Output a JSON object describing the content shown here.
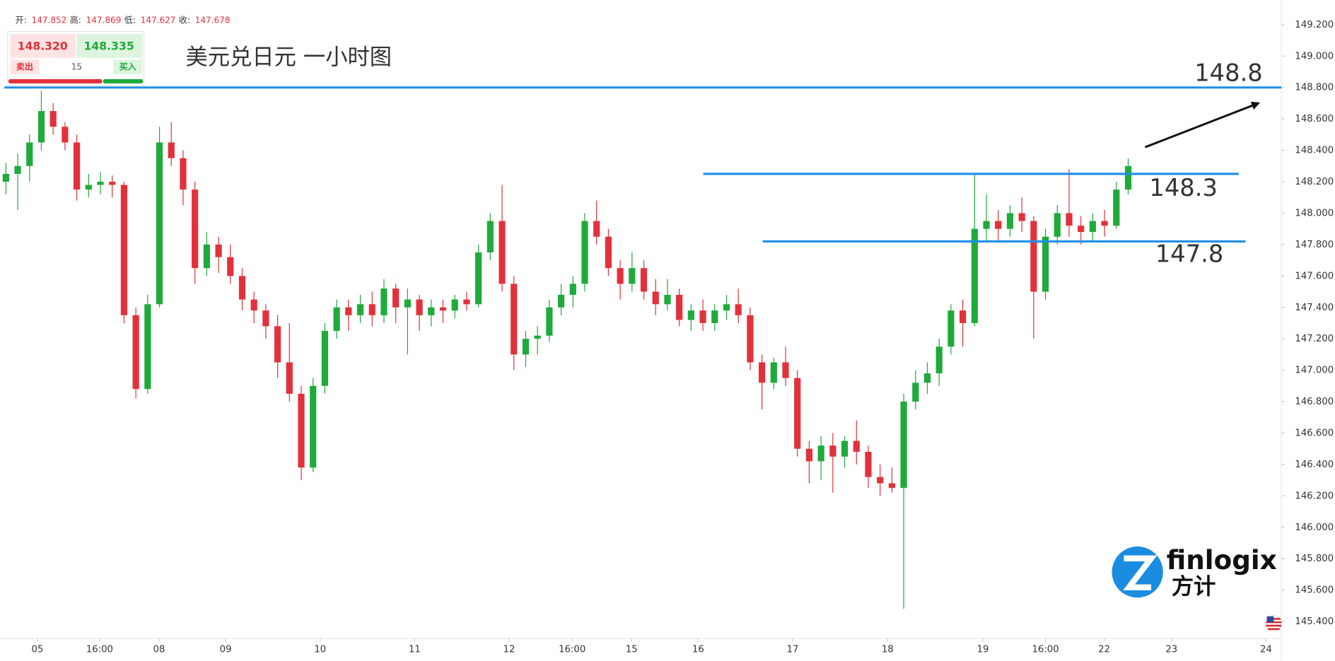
{
  "header": {
    "open_label": "开:",
    "open": "147.852",
    "high_label": "高:",
    "high": "147.869",
    "low_label": "低:",
    "low": "147.627",
    "close_label": "收:",
    "close": "147.678"
  },
  "widget": {
    "sell_price": "148.320",
    "buy_price": "148.335",
    "sell": "卖出",
    "buy": "买入",
    "lot": "15"
  },
  "logo": {
    "brand": "finlogix",
    "brand_cn": "方计"
  },
  "chart_data": {
    "type": "candlestick",
    "title": "美元兑日元 一小时图",
    "up_color": "#1faa3c",
    "down_color": "#e2313b",
    "grid": false,
    "xlim": [
      0,
      325.4
    ],
    "ylim": [
      145.292,
      149.357
    ],
    "xticks": [
      {
        "value": 9.5,
        "label": "05"
      },
      {
        "value": 25.3,
        "label": "16:00"
      },
      {
        "value": 40.4,
        "label": "08"
      },
      {
        "value": 57.3,
        "label": "09"
      },
      {
        "value": 81.3,
        "label": "10"
      },
      {
        "value": 105.3,
        "label": "11"
      },
      {
        "value": 129.3,
        "label": "12"
      },
      {
        "value": 145.3,
        "label": "16:00"
      },
      {
        "value": 160.4,
        "label": "15"
      },
      {
        "value": 177.3,
        "label": "16"
      },
      {
        "value": 201.3,
        "label": "17"
      },
      {
        "value": 225.4,
        "label": "18"
      },
      {
        "value": 249.6,
        "label": "19"
      },
      {
        "value": 265.5,
        "label": "16:00"
      },
      {
        "value": 280.4,
        "label": "22"
      },
      {
        "value": 297.5,
        "label": "23"
      },
      {
        "value": 321.5,
        "label": "24"
      }
    ],
    "yticks": [
      {
        "value": 149.2,
        "label": "149.200"
      },
      {
        "value": 149.0,
        "label": "149.000"
      },
      {
        "value": 148.8,
        "label": "148.800"
      },
      {
        "value": 148.6,
        "label": "148.600"
      },
      {
        "value": 148.4,
        "label": "148.400"
      },
      {
        "value": 148.2,
        "label": "148.200"
      },
      {
        "value": 148.0,
        "label": "148.000"
      },
      {
        "value": 147.8,
        "label": "147.800"
      },
      {
        "value": 147.6,
        "label": "147.600"
      },
      {
        "value": 147.4,
        "label": "147.400"
      },
      {
        "value": 147.2,
        "label": "147.200"
      },
      {
        "value": 147.0,
        "label": "147.000"
      },
      {
        "value": 146.8,
        "label": "146.800"
      },
      {
        "value": 146.6,
        "label": "146.600"
      },
      {
        "value": 146.4,
        "label": "146.400"
      },
      {
        "value": 146.2,
        "label": "146.200"
      },
      {
        "value": 146.0,
        "label": "146.000"
      },
      {
        "value": 145.8,
        "label": "145.800"
      },
      {
        "value": 145.6,
        "label": "145.600"
      },
      {
        "value": 145.4,
        "label": "145.400"
      }
    ],
    "x": [
      1.5,
      4.5,
      7.5,
      10.5,
      13.5,
      16.5,
      19.5,
      22.5,
      25.5,
      28.5,
      31.5,
      34.5,
      37.5,
      40.5,
      43.5,
      46.5,
      49.5,
      52.5,
      55.5,
      58.5,
      61.5,
      64.5,
      67.5,
      70.5,
      73.5,
      76.5,
      79.5,
      82.5,
      85.5,
      88.5,
      91.5,
      94.5,
      97.5,
      100.5,
      103.5,
      106.5,
      109.5,
      112.5,
      115.5,
      118.5,
      121.5,
      124.5,
      127.5,
      130.5,
      133.5,
      136.5,
      139.5,
      142.5,
      145.5,
      148.5,
      151.5,
      154.5,
      157.5,
      160.5,
      163.5,
      166.5,
      169.5,
      172.5,
      175.5,
      178.5,
      181.5,
      184.5,
      187.5,
      190.5,
      193.5,
      196.5,
      199.5,
      202.5,
      205.5,
      208.5,
      211.5,
      214.5,
      217.5,
      220.5,
      223.5,
      226.5,
      229.5,
      232.5,
      235.5,
      238.5,
      241.5,
      244.5,
      247.5,
      250.5,
      253.5,
      256.5,
      259.5,
      262.5,
      265.5,
      268.5,
      271.5,
      274.5,
      277.5,
      280.5,
      283.5,
      286.5
    ],
    "open": [
      148.2,
      148.25,
      148.3,
      148.45,
      148.65,
      148.55,
      148.45,
      148.15,
      148.18,
      148.2,
      148.18,
      147.35,
      146.88,
      147.42,
      148.45,
      148.35,
      148.15,
      147.65,
      147.8,
      147.72,
      147.6,
      147.45,
      147.38,
      147.28,
      147.05,
      146.85,
      146.38,
      146.9,
      147.25,
      147.4,
      147.35,
      147.42,
      147.35,
      147.52,
      147.4,
      147.45,
      147.35,
      147.4,
      147.38,
      147.45,
      147.42,
      147.75,
      147.95,
      147.55,
      147.1,
      147.2,
      147.22,
      147.4,
      147.48,
      147.55,
      147.95,
      147.85,
      147.65,
      147.55,
      147.65,
      147.5,
      147.42,
      147.48,
      147.32,
      147.38,
      147.3,
      147.38,
      147.42,
      147.35,
      147.05,
      146.92,
      147.05,
      146.95,
      146.5,
      146.42,
      146.52,
      146.45,
      146.55,
      146.48,
      146.32,
      146.28,
      146.25,
      146.8,
      146.92,
      146.98,
      147.15,
      147.38,
      147.3,
      147.9,
      147.95,
      147.9,
      148.0,
      147.95,
      147.5,
      147.85,
      148.0,
      147.92,
      147.88,
      147.95,
      147.92,
      148.15
    ],
    "high": [
      148.32,
      148.38,
      148.5,
      148.78,
      148.7,
      148.58,
      148.5,
      148.25,
      148.26,
      148.24,
      148.2,
      147.4,
      147.48,
      148.55,
      148.58,
      148.4,
      148.2,
      147.88,
      147.85,
      147.8,
      147.65,
      147.5,
      147.42,
      147.35,
      147.3,
      146.9,
      146.95,
      147.3,
      147.45,
      147.45,
      147.48,
      147.5,
      147.58,
      147.55,
      147.52,
      147.48,
      147.45,
      147.45,
      147.48,
      147.5,
      147.8,
      148.0,
      148.18,
      147.6,
      147.25,
      147.28,
      147.45,
      147.55,
      147.6,
      148.0,
      148.08,
      147.9,
      147.7,
      147.75,
      147.7,
      147.58,
      147.58,
      147.52,
      147.42,
      147.45,
      147.42,
      147.48,
      147.52,
      147.4,
      147.1,
      147.08,
      147.15,
      147.0,
      146.55,
      146.58,
      146.6,
      146.58,
      146.68,
      146.52,
      146.4,
      146.38,
      146.85,
      147.0,
      147.05,
      147.2,
      147.42,
      147.45,
      148.25,
      148.12,
      148.02,
      148.05,
      148.1,
      147.98,
      147.9,
      148.05,
      148.28,
      147.98,
      148.0,
      148.02,
      148.2,
      148.35
    ],
    "low": [
      148.12,
      148.02,
      148.2,
      148.4,
      148.5,
      148.4,
      148.08,
      148.1,
      148.12,
      148.1,
      147.3,
      146.82,
      146.85,
      147.4,
      148.3,
      148.05,
      147.55,
      147.6,
      147.62,
      147.55,
      147.38,
      147.3,
      147.2,
      146.95,
      146.8,
      146.3,
      146.35,
      146.85,
      147.2,
      147.25,
      147.3,
      147.28,
      147.3,
      147.3,
      147.1,
      147.25,
      147.28,
      147.3,
      147.33,
      147.38,
      147.4,
      147.7,
      147.5,
      147.0,
      147.02,
      147.1,
      147.18,
      147.35,
      147.4,
      147.5,
      147.8,
      147.6,
      147.45,
      147.5,
      147.45,
      147.35,
      147.38,
      147.28,
      147.25,
      147.25,
      147.25,
      147.32,
      147.3,
      147.0,
      146.75,
      146.88,
      146.9,
      146.45,
      146.28,
      146.3,
      146.22,
      146.38,
      146.4,
      146.25,
      146.2,
      146.22,
      145.48,
      146.75,
      146.85,
      146.9,
      147.1,
      147.15,
      147.28,
      147.82,
      147.82,
      147.85,
      147.88,
      147.2,
      147.45,
      147.8,
      147.85,
      147.8,
      147.82,
      147.85,
      147.9,
      148.12
    ],
    "close": [
      148.25,
      148.3,
      148.45,
      148.65,
      148.55,
      148.45,
      148.15,
      148.18,
      148.2,
      148.18,
      147.35,
      146.88,
      147.42,
      148.45,
      148.35,
      148.15,
      147.65,
      147.8,
      147.72,
      147.6,
      147.45,
      147.38,
      147.28,
      147.05,
      146.85,
      146.38,
      146.9,
      147.25,
      147.4,
      147.35,
      147.42,
      147.35,
      147.52,
      147.4,
      147.45,
      147.35,
      147.4,
      147.38,
      147.45,
      147.42,
      147.75,
      147.95,
      147.55,
      147.1,
      147.2,
      147.22,
      147.4,
      147.48,
      147.55,
      147.95,
      147.85,
      147.65,
      147.55,
      147.65,
      147.5,
      147.42,
      147.48,
      147.32,
      147.38,
      147.3,
      147.38,
      147.42,
      147.35,
      147.05,
      146.92,
      147.05,
      146.95,
      146.5,
      146.42,
      146.52,
      146.45,
      146.55,
      146.48,
      146.32,
      146.28,
      146.25,
      146.8,
      146.92,
      146.98,
      147.15,
      147.38,
      147.3,
      147.9,
      147.95,
      147.9,
      148.0,
      147.95,
      147.5,
      147.85,
      148.0,
      147.92,
      147.88,
      147.95,
      147.92,
      148.15,
      148.3
    ],
    "hlines": [
      {
        "value": 148.8,
        "label": "148.8",
        "x_range": [
          1.1,
          325.4
        ]
      },
      {
        "value": 148.25,
        "label": "148.3",
        "x_range": [
          178.6,
          314.6
        ]
      },
      {
        "value": 147.82,
        "label": "147.8",
        "x_range": [
          193.7,
          316.3
        ]
      }
    ],
    "line_color": "#1e8fe6",
    "arrow": {
      "from": [
        290.8,
        148.42
      ],
      "to": [
        319.6,
        148.7
      ]
    }
  }
}
